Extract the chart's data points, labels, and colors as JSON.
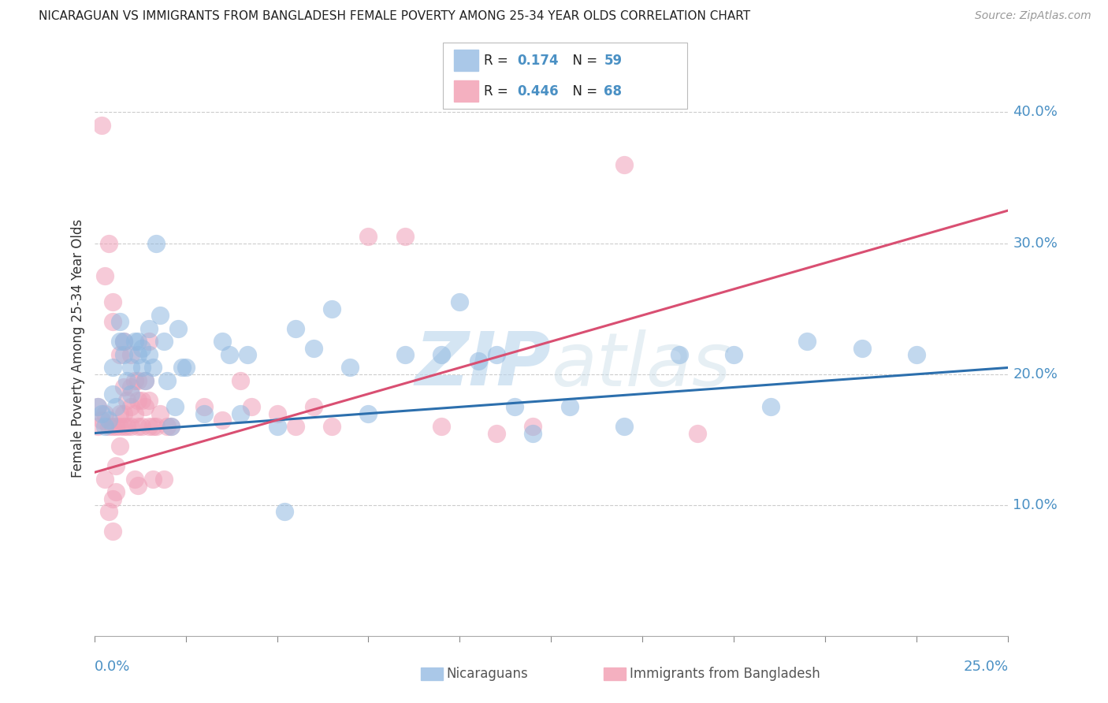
{
  "title": "NICARAGUAN VS IMMIGRANTS FROM BANGLADESH FEMALE POVERTY AMONG 25-34 YEAR OLDS CORRELATION CHART",
  "source": "Source: ZipAtlas.com",
  "ylabel": "Female Poverty Among 25-34 Year Olds",
  "ytick_vals": [
    0.1,
    0.2,
    0.3,
    0.4
  ],
  "xrange": [
    0.0,
    0.25
  ],
  "yrange": [
    0.0,
    0.44
  ],
  "blue_color": "#90b8e0",
  "pink_color": "#f0a0b8",
  "blue_line_color": "#2c6fad",
  "pink_line_color": "#d94f72",
  "blue_label_R": "0.174",
  "blue_label_N": "59",
  "pink_label_R": "0.446",
  "pink_label_N": "68",
  "label_color_dark": "#222222",
  "label_color_blue": "#4a90c4",
  "ytick_label_color": "#4a90c4",
  "watermark": "ZIPatlas",
  "blue_line": [
    0.155,
    0.205
  ],
  "pink_line": [
    0.125,
    0.325
  ],
  "blue_scatter": [
    [
      0.001,
      0.175
    ],
    [
      0.002,
      0.17
    ],
    [
      0.003,
      0.16
    ],
    [
      0.004,
      0.165
    ],
    [
      0.005,
      0.185
    ],
    [
      0.005,
      0.205
    ],
    [
      0.006,
      0.175
    ],
    [
      0.007,
      0.225
    ],
    [
      0.007,
      0.24
    ],
    [
      0.008,
      0.215
    ],
    [
      0.008,
      0.225
    ],
    [
      0.009,
      0.195
    ],
    [
      0.01,
      0.185
    ],
    [
      0.01,
      0.205
    ],
    [
      0.011,
      0.225
    ],
    [
      0.012,
      0.215
    ],
    [
      0.012,
      0.225
    ],
    [
      0.013,
      0.205
    ],
    [
      0.013,
      0.22
    ],
    [
      0.014,
      0.195
    ],
    [
      0.015,
      0.215
    ],
    [
      0.015,
      0.235
    ],
    [
      0.016,
      0.205
    ],
    [
      0.017,
      0.3
    ],
    [
      0.018,
      0.245
    ],
    [
      0.019,
      0.225
    ],
    [
      0.02,
      0.195
    ],
    [
      0.021,
      0.16
    ],
    [
      0.022,
      0.175
    ],
    [
      0.023,
      0.235
    ],
    [
      0.024,
      0.205
    ],
    [
      0.025,
      0.205
    ],
    [
      0.03,
      0.17
    ],
    [
      0.035,
      0.225
    ],
    [
      0.037,
      0.215
    ],
    [
      0.04,
      0.17
    ],
    [
      0.042,
      0.215
    ],
    [
      0.05,
      0.16
    ],
    [
      0.052,
      0.095
    ],
    [
      0.055,
      0.235
    ],
    [
      0.06,
      0.22
    ],
    [
      0.065,
      0.25
    ],
    [
      0.07,
      0.205
    ],
    [
      0.075,
      0.17
    ],
    [
      0.085,
      0.215
    ],
    [
      0.095,
      0.215
    ],
    [
      0.1,
      0.255
    ],
    [
      0.105,
      0.21
    ],
    [
      0.11,
      0.215
    ],
    [
      0.115,
      0.175
    ],
    [
      0.12,
      0.155
    ],
    [
      0.13,
      0.175
    ],
    [
      0.145,
      0.16
    ],
    [
      0.16,
      0.215
    ],
    [
      0.175,
      0.215
    ],
    [
      0.185,
      0.175
    ],
    [
      0.195,
      0.225
    ],
    [
      0.21,
      0.22
    ],
    [
      0.225,
      0.215
    ]
  ],
  "pink_scatter": [
    [
      0.001,
      0.175
    ],
    [
      0.001,
      0.16
    ],
    [
      0.002,
      0.165
    ],
    [
      0.002,
      0.39
    ],
    [
      0.003,
      0.275
    ],
    [
      0.003,
      0.17
    ],
    [
      0.003,
      0.12
    ],
    [
      0.004,
      0.3
    ],
    [
      0.004,
      0.16
    ],
    [
      0.004,
      0.095
    ],
    [
      0.005,
      0.255
    ],
    [
      0.005,
      0.24
    ],
    [
      0.005,
      0.16
    ],
    [
      0.005,
      0.105
    ],
    [
      0.005,
      0.08
    ],
    [
      0.006,
      0.16
    ],
    [
      0.006,
      0.13
    ],
    [
      0.006,
      0.11
    ],
    [
      0.007,
      0.215
    ],
    [
      0.007,
      0.17
    ],
    [
      0.007,
      0.16
    ],
    [
      0.007,
      0.145
    ],
    [
      0.008,
      0.225
    ],
    [
      0.008,
      0.19
    ],
    [
      0.008,
      0.17
    ],
    [
      0.008,
      0.16
    ],
    [
      0.009,
      0.18
    ],
    [
      0.009,
      0.16
    ],
    [
      0.01,
      0.215
    ],
    [
      0.01,
      0.19
    ],
    [
      0.01,
      0.175
    ],
    [
      0.01,
      0.16
    ],
    [
      0.011,
      0.195
    ],
    [
      0.011,
      0.17
    ],
    [
      0.011,
      0.12
    ],
    [
      0.012,
      0.195
    ],
    [
      0.012,
      0.18
    ],
    [
      0.012,
      0.16
    ],
    [
      0.012,
      0.115
    ],
    [
      0.013,
      0.18
    ],
    [
      0.013,
      0.16
    ],
    [
      0.014,
      0.195
    ],
    [
      0.014,
      0.175
    ],
    [
      0.015,
      0.225
    ],
    [
      0.015,
      0.18
    ],
    [
      0.015,
      0.16
    ],
    [
      0.016,
      0.16
    ],
    [
      0.016,
      0.12
    ],
    [
      0.017,
      0.16
    ],
    [
      0.018,
      0.17
    ],
    [
      0.019,
      0.12
    ],
    [
      0.02,
      0.16
    ],
    [
      0.021,
      0.16
    ],
    [
      0.03,
      0.175
    ],
    [
      0.035,
      0.165
    ],
    [
      0.04,
      0.195
    ],
    [
      0.043,
      0.175
    ],
    [
      0.05,
      0.17
    ],
    [
      0.055,
      0.16
    ],
    [
      0.06,
      0.175
    ],
    [
      0.065,
      0.16
    ],
    [
      0.075,
      0.305
    ],
    [
      0.085,
      0.305
    ],
    [
      0.095,
      0.16
    ],
    [
      0.11,
      0.155
    ],
    [
      0.12,
      0.16
    ],
    [
      0.145,
      0.36
    ],
    [
      0.165,
      0.155
    ]
  ]
}
